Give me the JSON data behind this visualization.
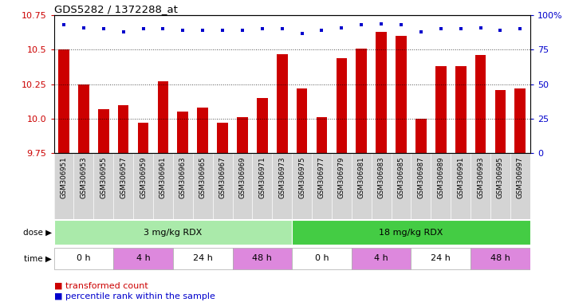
{
  "title": "GDS5282 / 1372288_at",
  "samples": [
    "GSM306951",
    "GSM306953",
    "GSM306955",
    "GSM306957",
    "GSM306959",
    "GSM306961",
    "GSM306963",
    "GSM306965",
    "GSM306967",
    "GSM306969",
    "GSM306971",
    "GSM306973",
    "GSM306975",
    "GSM306977",
    "GSM306979",
    "GSM306981",
    "GSM306983",
    "GSM306985",
    "GSM306987",
    "GSM306989",
    "GSM306991",
    "GSM306993",
    "GSM306995",
    "GSM306997"
  ],
  "bar_values": [
    10.5,
    10.25,
    10.07,
    10.1,
    9.97,
    10.27,
    10.05,
    10.08,
    9.97,
    10.01,
    10.15,
    10.47,
    10.22,
    10.01,
    10.44,
    10.51,
    10.63,
    10.6,
    10.0,
    10.38,
    10.38,
    10.46,
    10.21,
    10.22
  ],
  "percentile_values": [
    93,
    91,
    90,
    88,
    90,
    90,
    89,
    89,
    89,
    89,
    90,
    90,
    87,
    89,
    91,
    93,
    94,
    93,
    88,
    90,
    90,
    91,
    89,
    90
  ],
  "bar_color": "#cc0000",
  "dot_color": "#0000cc",
  "ylim_left": [
    9.75,
    10.75
  ],
  "ylim_right": [
    0,
    100
  ],
  "yticks_left": [
    9.75,
    10.0,
    10.25,
    10.5,
    10.75
  ],
  "yticks_right": [
    0,
    25,
    50,
    75,
    100
  ],
  "ytick_labels_right": [
    "0",
    "25",
    "50",
    "75",
    "100%"
  ],
  "grid_values": [
    10.0,
    10.25,
    10.5
  ],
  "dose_groups": [
    {
      "label": "3 mg/kg RDX",
      "start": 0,
      "end": 12,
      "color": "#aaeaaa"
    },
    {
      "label": "18 mg/kg RDX",
      "start": 12,
      "end": 24,
      "color": "#44cc44"
    }
  ],
  "time_groups": [
    {
      "label": "0 h",
      "start": 0,
      "end": 3,
      "color": "#ffffff"
    },
    {
      "label": "4 h",
      "start": 3,
      "end": 6,
      "color": "#dd88dd"
    },
    {
      "label": "24 h",
      "start": 6,
      "end": 9,
      "color": "#ffffff"
    },
    {
      "label": "48 h",
      "start": 9,
      "end": 12,
      "color": "#dd88dd"
    },
    {
      "label": "0 h",
      "start": 12,
      "end": 15,
      "color": "#ffffff"
    },
    {
      "label": "4 h",
      "start": 15,
      "end": 18,
      "color": "#dd88dd"
    },
    {
      "label": "24 h",
      "start": 18,
      "end": 21,
      "color": "#ffffff"
    },
    {
      "label": "48 h",
      "start": 21,
      "end": 24,
      "color": "#dd88dd"
    }
  ],
  "xtick_bg_color": "#d4d4d4",
  "plot_bg_color": "#ffffff",
  "fig_bg_color": "#ffffff"
}
